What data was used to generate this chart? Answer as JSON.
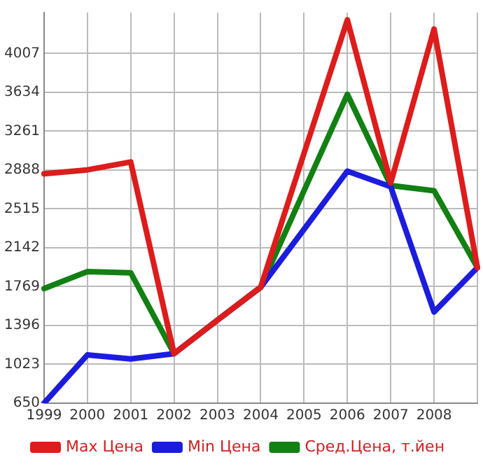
{
  "chart_data": {
    "type": "line",
    "categories": [
      "1999",
      "2000",
      "2001",
      "2002",
      "2003",
      "2004",
      "2005",
      "2006",
      "2007",
      "2008",
      null
    ],
    "series": [
      {
        "name": "Max Цена",
        "color": "#dd1c1c",
        "values": [
          2853,
          2890,
          2966,
          1126,
          1447,
          1764,
          3050,
          4330,
          2765,
          4242,
          1952
        ]
      },
      {
        "name": "Min Цена",
        "color": "#1c1cdd",
        "values": [
          650,
          1113,
          1075,
          1126,
          1447,
          1764,
          2320,
          2878,
          2728,
          1526,
          1952
        ]
      },
      {
        "name": "Сред.Цена, т.йен",
        "color": "#128012",
        "values": [
          1751,
          1914,
          1902,
          1126,
          1447,
          1764,
          2690,
          3616,
          2740,
          2690,
          1952
        ]
      }
    ],
    "ylim": [
      650,
      4400
    ],
    "yticks": [
      650,
      1023,
      1396,
      1769,
      2142,
      2515,
      2888,
      3261,
      3634,
      4007
    ],
    "grid": true,
    "legend": "bottom",
    "marker": "none",
    "line_style": "solid"
  }
}
